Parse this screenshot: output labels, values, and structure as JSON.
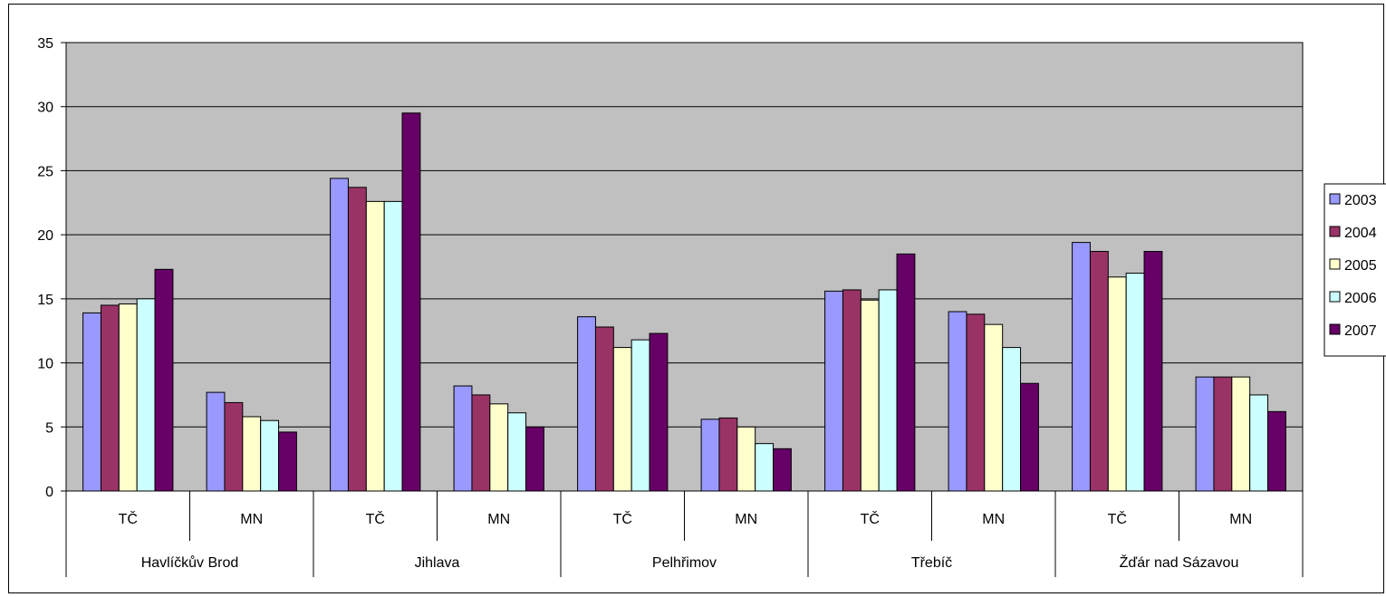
{
  "chart_data": {
    "type": "bar",
    "title": "",
    "xlabel": "",
    "ylabel": "",
    "ylim": [
      0,
      35
    ],
    "yticks": [
      0,
      5,
      10,
      15,
      20,
      25,
      30,
      35
    ],
    "grid": true,
    "legend_position": "right",
    "groups": [
      "Havlíčkův Brod",
      "Jihlava",
      "Pelhřimov",
      "Třebíč",
      "Žďár nad Sázavou"
    ],
    "categories": [
      "TČ",
      "MN",
      "TČ",
      "MN",
      "TČ",
      "MN",
      "TČ",
      "MN",
      "TČ",
      "MN"
    ],
    "series": [
      {
        "name": "2003",
        "color": "#9999FF",
        "values": [
          13.9,
          7.7,
          24.4,
          8.2,
          13.6,
          5.6,
          15.6,
          14.0,
          19.4,
          8.9
        ]
      },
      {
        "name": "2004",
        "color": "#993366",
        "values": [
          14.5,
          6.9,
          23.7,
          7.5,
          12.8,
          5.7,
          15.7,
          13.8,
          18.7,
          8.9
        ]
      },
      {
        "name": "2005",
        "color": "#FFFFCC",
        "values": [
          14.6,
          5.8,
          22.6,
          6.8,
          11.2,
          5.0,
          14.9,
          13.0,
          16.7,
          8.9
        ]
      },
      {
        "name": "2006",
        "color": "#CCFFFF",
        "values": [
          15.0,
          5.5,
          22.6,
          6.1,
          11.8,
          3.7,
          15.7,
          11.2,
          17.0,
          7.5
        ]
      },
      {
        "name": "2007",
        "color": "#660066",
        "values": [
          17.3,
          4.6,
          29.5,
          5.0,
          12.3,
          3.3,
          18.5,
          8.4,
          18.7,
          6.2
        ]
      }
    ],
    "colors": {
      "plot_background": "#C0C0C0",
      "gridline": "#000000",
      "frame": "#000000"
    }
  }
}
